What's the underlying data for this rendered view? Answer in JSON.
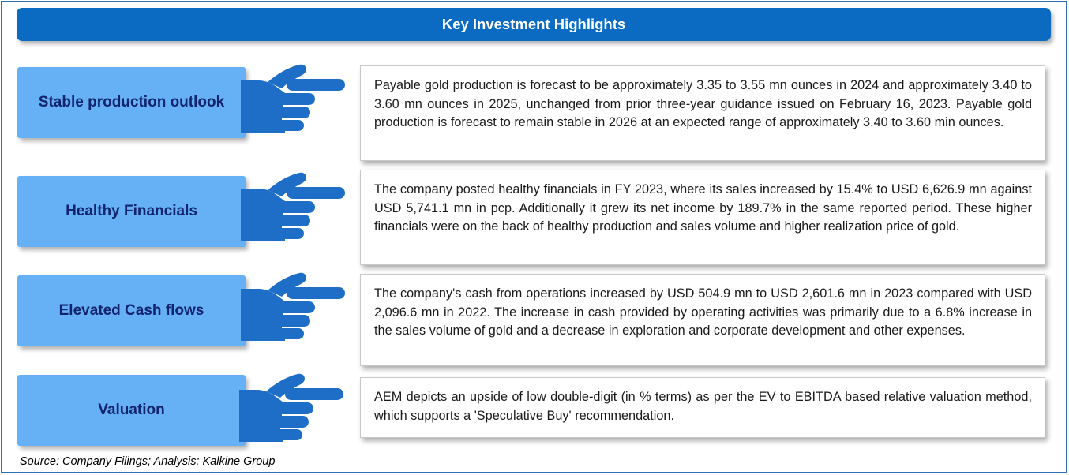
{
  "header": {
    "title": "Key Investment Highlights"
  },
  "highlights": [
    {
      "label": "Stable production outlook",
      "text": "Payable gold production is forecast to be approximately 3.35 to 3.55 mn ounces in 2024 and approximately 3.40 to 3.60 mn ounces in 2025, unchanged from prior three-year guidance issued on February 16, 2023. Payable gold production is forecast to remain stable in 2026 at an expected range of approximately 3.40 to 3.60 min ounces."
    },
    {
      "label": "Healthy Financials",
      "text": "The company posted healthy financials in FY 2023, where its sales increased by 15.4% to USD 6,626.9 mn against USD 5,741.1 mn in pcp. Additionally it grew its net income by 189.7%  in the same reported period.  These higher financials were on the back of healthy production and sales volume and higher realization price of gold."
    },
    {
      "label": "Elevated Cash flows",
      "text": "The company's cash from operations increased by USD 504.9 mn to USD 2,601.6 mn in 2023 compared with USD 2,096.6 mn in 2022. The increase in cash provided by operating activities was primarily due to a 6.8% increase in the sales volume of gold and a decrease in exploration and corporate development and other expenses."
    },
    {
      "label": "Valuation",
      "text": "AEM depicts an upside of low double-digit (in % terms) as per the EV to EBITDA based relative valuation method, which supports a 'Speculative Buy' recommendation."
    }
  ],
  "footer": {
    "source": "Source: Company Filings; Analysis: Kalkine Group"
  },
  "colors": {
    "banner": "#0b6bc2",
    "label_bg": "#66b0f6",
    "label_text": "#11246d",
    "hand": "#1e6ec8"
  },
  "icons": {
    "pointer": "pointing-hand-icon"
  }
}
